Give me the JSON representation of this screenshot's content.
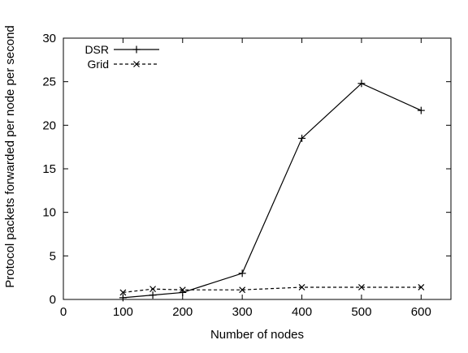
{
  "chart_data": {
    "type": "line",
    "title": "",
    "xlabel": "Number of nodes",
    "ylabel": "Protocol packets forwarded per node per second",
    "xlim": [
      0,
      650
    ],
    "ylim": [
      0,
      30
    ],
    "x_ticks": [
      0,
      100,
      200,
      300,
      400,
      500,
      600
    ],
    "y_ticks": [
      0,
      5,
      10,
      15,
      20,
      25,
      30
    ],
    "grid": false,
    "legend_position": "top-left",
    "series": [
      {
        "name": "DSR",
        "line_style": "solid",
        "marker": "plus",
        "color": "#000000",
        "x": [
          100,
          150,
          200,
          300,
          400,
          500,
          600
        ],
        "y": [
          0.2,
          0.5,
          0.8,
          3.0,
          18.5,
          24.8,
          21.7
        ]
      },
      {
        "name": "Grid",
        "line_style": "dashed",
        "marker": "cross",
        "color": "#000000",
        "x": [
          100,
          150,
          200,
          300,
          400,
          500,
          600
        ],
        "y": [
          0.8,
          1.2,
          1.1,
          1.1,
          1.4,
          1.4,
          1.4
        ]
      }
    ]
  }
}
